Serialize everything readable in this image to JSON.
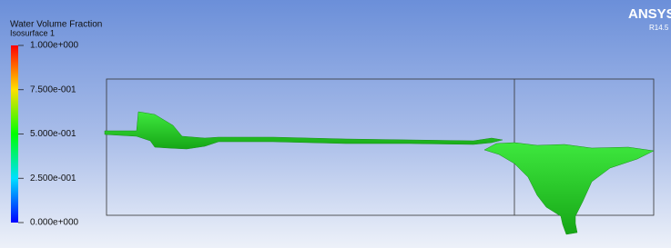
{
  "legend": {
    "title": "Water Volume Fraction",
    "subtitle": "Isosurface 1",
    "ticks": [
      "1.000e+000",
      "7.500e-001",
      "5.000e-001",
      "2.500e-001",
      "0.000e+000"
    ]
  },
  "logo": {
    "name": "ANSYS",
    "version": "R14.5"
  }
}
